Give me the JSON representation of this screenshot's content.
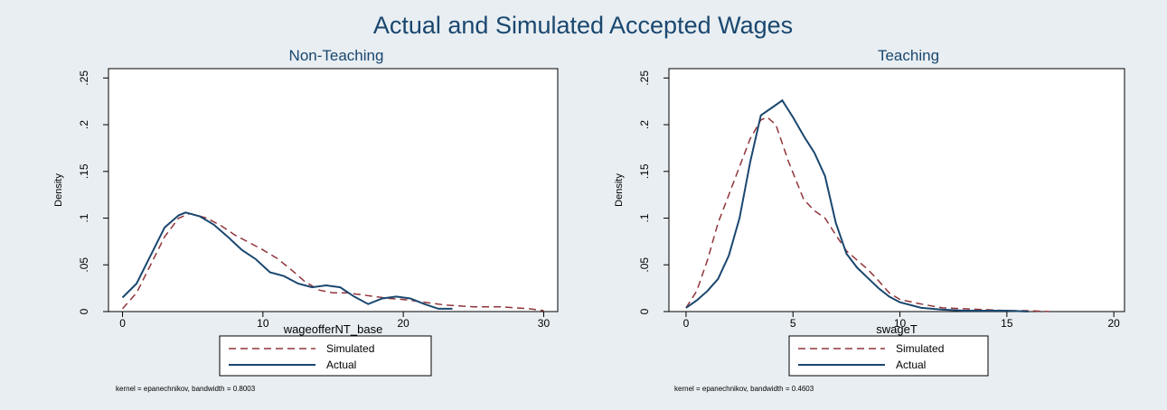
{
  "title": "Actual and Simulated Accepted Wages",
  "colors": {
    "background": "#e8eef2",
    "plot_background": "#ffffff",
    "simulated": "#90353b",
    "actual": "#1a476f",
    "title": "#1a476f"
  },
  "chart_data": [
    {
      "type": "line",
      "title": "Non-Teaching",
      "xlabel": "wageofferNT_base",
      "ylabel": "Density",
      "xlim": [
        -1,
        31
      ],
      "ylim": [
        0,
        0.26
      ],
      "xticks": [
        0,
        10,
        20,
        30
      ],
      "xtick_labels": [
        "0",
        "10",
        "20",
        "30"
      ],
      "yticks": [
        0,
        0.05,
        0.1,
        0.15,
        0.2,
        0.25
      ],
      "ytick_labels": [
        "0",
        ".05",
        ".1",
        ".15",
        ".2",
        ".25"
      ],
      "grid": false,
      "legend_position": "bottom",
      "note": "kernel = epanechnikov, bandwidth = 0.8003",
      "series": [
        {
          "name": "Simulated",
          "style": "dashed",
          "x": [
            0,
            1,
            2,
            3,
            4,
            4.8,
            6,
            7,
            8,
            9,
            10,
            11,
            12,
            13,
            14,
            15,
            16,
            17,
            18,
            19,
            20,
            21,
            22,
            23,
            24,
            25,
            26,
            27,
            28,
            29,
            30
          ],
          "y": [
            0.003,
            0.02,
            0.05,
            0.08,
            0.1,
            0.105,
            0.1,
            0.092,
            0.082,
            0.074,
            0.066,
            0.057,
            0.045,
            0.032,
            0.023,
            0.02,
            0.02,
            0.018,
            0.016,
            0.014,
            0.013,
            0.011,
            0.009,
            0.007,
            0.006,
            0.005,
            0.005,
            0.005,
            0.004,
            0.003,
            0.001
          ]
        },
        {
          "name": "Actual",
          "style": "solid",
          "x": [
            0,
            1,
            2,
            3,
            4,
            4.5,
            5.5,
            6.5,
            7.5,
            8.5,
            9.5,
            10.5,
            11.5,
            12.5,
            13.5,
            14.5,
            15.5,
            16.5,
            17.5,
            18.5,
            19.5,
            20.5,
            21.5,
            22.5,
            23.5
          ],
          "y": [
            0.015,
            0.03,
            0.06,
            0.09,
            0.103,
            0.106,
            0.102,
            0.093,
            0.08,
            0.066,
            0.056,
            0.042,
            0.038,
            0.03,
            0.026,
            0.028,
            0.026,
            0.016,
            0.008,
            0.014,
            0.016,
            0.014,
            0.008,
            0.003,
            0.003
          ]
        }
      ]
    },
    {
      "type": "line",
      "title": "Teaching",
      "xlabel": "swageT",
      "ylabel": "Density",
      "xlim": [
        -0.8,
        20.5
      ],
      "ylim": [
        0,
        0.26
      ],
      "xticks": [
        0,
        5,
        10,
        15,
        20
      ],
      "xtick_labels": [
        "0",
        "5",
        "10",
        "15",
        "20"
      ],
      "yticks": [
        0,
        0.05,
        0.1,
        0.15,
        0.2,
        0.25
      ],
      "ytick_labels": [
        "0",
        ".05",
        ".1",
        ".15",
        ".2",
        ".25"
      ],
      "grid": false,
      "legend_position": "bottom",
      "note": "kernel = epanechnikov, bandwidth = 0.4603",
      "series": [
        {
          "name": "Simulated",
          "style": "dashed",
          "x": [
            0,
            0.5,
            1,
            1.5,
            2,
            2.5,
            3,
            3.5,
            3.8,
            4.2,
            4.8,
            5.5,
            6,
            6.5,
            7,
            7.5,
            8,
            8.5,
            9,
            9.5,
            10,
            11,
            12,
            13,
            14,
            15,
            16,
            17
          ],
          "y": [
            0.004,
            0.022,
            0.055,
            0.095,
            0.125,
            0.155,
            0.185,
            0.205,
            0.208,
            0.2,
            0.16,
            0.12,
            0.108,
            0.1,
            0.082,
            0.065,
            0.055,
            0.045,
            0.033,
            0.02,
            0.013,
            0.008,
            0.004,
            0.003,
            0.002,
            0.001,
            0.001,
            0.0
          ]
        },
        {
          "name": "Actual",
          "style": "solid",
          "x": [
            0,
            0.5,
            1,
            1.5,
            2,
            2.5,
            3,
            3.5,
            4,
            4.5,
            5,
            5.5,
            6,
            6.5,
            7,
            7.5,
            8,
            8.5,
            9,
            9.5,
            10,
            11,
            12,
            13,
            14,
            15,
            16
          ],
          "y": [
            0.004,
            0.012,
            0.022,
            0.035,
            0.06,
            0.1,
            0.16,
            0.21,
            0.218,
            0.226,
            0.208,
            0.188,
            0.17,
            0.145,
            0.095,
            0.062,
            0.047,
            0.036,
            0.025,
            0.016,
            0.01,
            0.004,
            0.002,
            0.001,
            0.001,
            0.001,
            0.0
          ]
        }
      ]
    }
  ]
}
